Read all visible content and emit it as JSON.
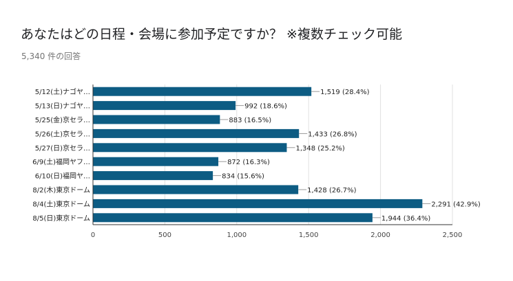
{
  "title": "あなたはどの日程・会場に参加予定ですか？ ※複数チェック可能",
  "subtitle": "5,340 件の回答",
  "colors": {
    "bar": "#0d5c83",
    "grid": "#e0e0e0",
    "axis": "#333333",
    "leader": "#999999"
  },
  "chart_data": {
    "type": "bar",
    "orientation": "horizontal",
    "categories": [
      "5/12(土)ナゴヤ…",
      "5/13(日)ナゴヤ…",
      "5/25(金)京セラ…",
      "5/26(土)京セラ…",
      "5/27(日)京セラ…",
      "6/9(土)福岡ヤフ…",
      "6/10(日)福岡ヤ…",
      "8/2(木)東京ドーム",
      "8/4(土)東京ドーム",
      "8/5(日)東京ドーム"
    ],
    "values": [
      1519,
      992,
      883,
      1433,
      1348,
      872,
      834,
      1428,
      2291,
      1944
    ],
    "data_labels": [
      "1,519 (28.4%)",
      "992 (18.6%)",
      "883 (16.5%)",
      "1,433 (26.8%)",
      "1,348 (25.2%)",
      "872 (16.3%)",
      "834 (15.6%)",
      "1,428 (26.7%)",
      "2,291 (42.9%)",
      "1,944 (36.4%)"
    ],
    "xlim": [
      0,
      2500
    ],
    "xticks": [
      0,
      500,
      1000,
      1500,
      2000,
      2500
    ],
    "xtick_labels": [
      "0",
      "500",
      "1,000",
      "1,500",
      "2,000",
      "2,500"
    ],
    "grid": true,
    "legend": "none"
  }
}
